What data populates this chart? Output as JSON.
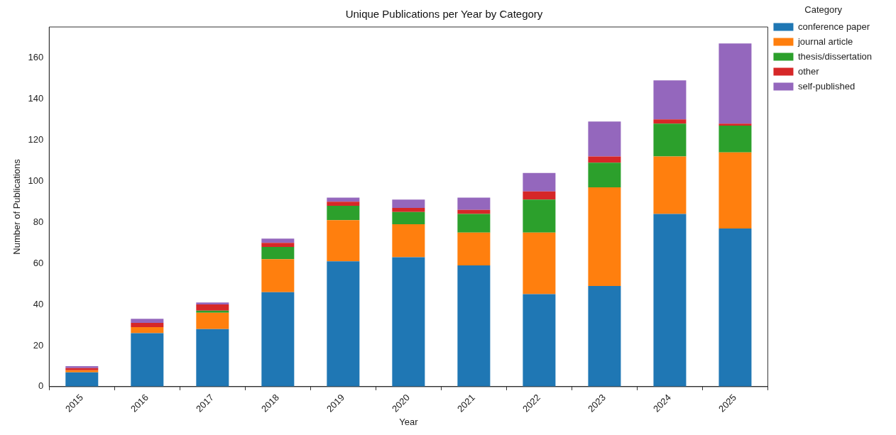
{
  "chart_data": {
    "type": "bar",
    "title": "Unique Publications per Year by Category",
    "xlabel": "Year",
    "ylabel": "Number of Publications",
    "legend_title": "Category",
    "categories": [
      "2015",
      "2016",
      "2017",
      "2018",
      "2019",
      "2020",
      "2021",
      "2022",
      "2023",
      "2024",
      "2025"
    ],
    "series": [
      {
        "name": "conference paper",
        "color": "#1f77b4",
        "values": [
          7,
          26,
          28,
          46,
          61,
          63,
          59,
          45,
          49,
          84,
          77
        ]
      },
      {
        "name": "journal article",
        "color": "#ff7f0e",
        "values": [
          1,
          3,
          8,
          16,
          20,
          16,
          16,
          30,
          48,
          28,
          37
        ]
      },
      {
        "name": "thesis/dissertation",
        "color": "#2ca02c",
        "values": [
          0,
          0,
          1,
          6,
          7,
          6,
          9,
          16,
          12,
          16,
          13
        ]
      },
      {
        "name": "other",
        "color": "#d62728",
        "values": [
          1,
          2,
          3,
          2,
          2,
          2,
          2,
          4,
          3,
          2,
          1
        ]
      },
      {
        "name": "self-published",
        "color": "#9467bd",
        "values": [
          1,
          2,
          1,
          2,
          2,
          4,
          6,
          9,
          17,
          19,
          39
        ]
      }
    ],
    "stacked": true,
    "ylim": [
      0,
      175
    ],
    "yticks": [
      0,
      20,
      40,
      60,
      80,
      100,
      120,
      140,
      160
    ],
    "grid": false,
    "legend": "top right"
  }
}
